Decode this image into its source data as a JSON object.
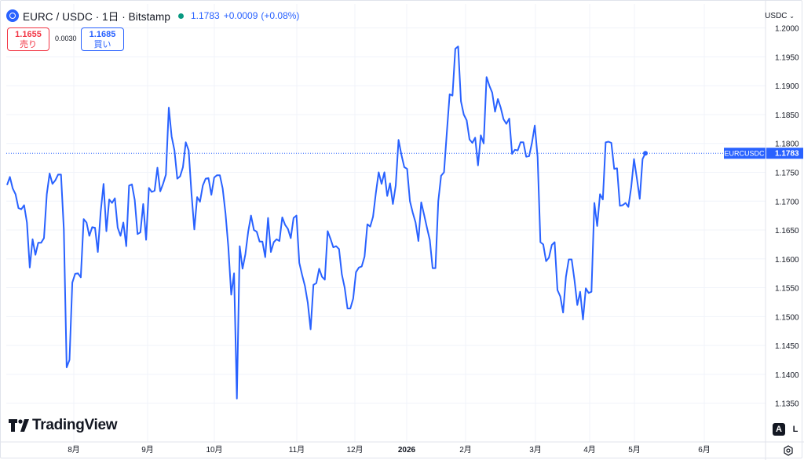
{
  "header": {
    "title": "EURC / USDC · 1日 · Bitstamp",
    "price": "1.1783",
    "change": "+0.0009",
    "change_pct": "(+0.08%)"
  },
  "trade": {
    "sell_price": "1.1655",
    "sell_label": "売り",
    "spread": "0.0030",
    "buy_price": "1.1685",
    "buy_label": "買い"
  },
  "axis_currency": "USDC",
  "branding": "TradingView",
  "controls": {
    "auto": "A",
    "log": "L"
  },
  "colors": {
    "line": "#2962ff",
    "sell": "#f23645",
    "buy": "#2962ff",
    "status_dot": "#089981"
  },
  "chart_data": {
    "type": "line",
    "series": [
      {
        "name": "EURCUSDC",
        "values": [
          1.1728,
          1.1742,
          1.1722,
          1.1712,
          1.1688,
          1.1686,
          1.1693,
          1.1663,
          1.1585,
          1.1634,
          1.1607,
          1.1628,
          1.1628,
          1.1636,
          1.1712,
          1.1748,
          1.173,
          1.1736,
          1.1746,
          1.1746,
          1.1651,
          1.1412,
          1.1425,
          1.1559,
          1.1574,
          1.1575,
          1.1568,
          1.1669,
          1.1663,
          1.164,
          1.1655,
          1.1654,
          1.1612,
          1.1681,
          1.173,
          1.1648,
          1.1703,
          1.1697,
          1.1705,
          1.1654,
          1.164,
          1.1663,
          1.1622,
          1.1727,
          1.1729,
          1.1702,
          1.1643,
          1.1646,
          1.1695,
          1.1633,
          1.1723,
          1.1716,
          1.1718,
          1.1758,
          1.1717,
          1.173,
          1.1746,
          1.1862,
          1.1812,
          1.1788,
          1.1739,
          1.1743,
          1.1759,
          1.1802,
          1.1788,
          1.1713,
          1.1651,
          1.1707,
          1.1699,
          1.1727,
          1.1739,
          1.174,
          1.1711,
          1.1741,
          1.1745,
          1.1745,
          1.1722,
          1.1679,
          1.1621,
          1.1538,
          1.1575,
          1.1358,
          1.1622,
          1.1583,
          1.1608,
          1.1647,
          1.1675,
          1.165,
          1.1647,
          1.163,
          1.163,
          1.1603,
          1.1671,
          1.1612,
          1.1629,
          1.1634,
          1.1631,
          1.1672,
          1.1659,
          1.1652,
          1.1636,
          1.1671,
          1.1675,
          1.1593,
          1.1572,
          1.1553,
          1.1524,
          1.1478,
          1.1555,
          1.1558,
          1.1583,
          1.1569,
          1.1564,
          1.1648,
          1.1635,
          1.162,
          1.1622,
          1.1617,
          1.1573,
          1.155,
          1.1514,
          1.1514,
          1.1531,
          1.1577,
          1.1585,
          1.1587,
          1.1604,
          1.166,
          1.1656,
          1.1673,
          1.1714,
          1.175,
          1.173,
          1.175,
          1.1709,
          1.1731,
          1.1695,
          1.1727,
          1.1806,
          1.178,
          1.1759,
          1.1756,
          1.17,
          1.168,
          1.1663,
          1.1631,
          1.1698,
          1.1676,
          1.1654,
          1.1633,
          1.1584,
          1.1584,
          1.17,
          1.1744,
          1.175,
          1.1819,
          1.1885,
          1.1883,
          1.1964,
          1.1968,
          1.1873,
          1.185,
          1.184,
          1.1807,
          1.1801,
          1.181,
          1.1762,
          1.1814,
          1.18,
          1.1915,
          1.19,
          1.1888,
          1.1855,
          1.1877,
          1.1862,
          1.1842,
          1.1834,
          1.1843,
          1.1782,
          1.1789,
          1.1788,
          1.1802,
          1.1802,
          1.1777,
          1.1778,
          1.1801,
          1.1831,
          1.1777,
          1.1629,
          1.1625,
          1.1596,
          1.1602,
          1.1624,
          1.1629,
          1.1546,
          1.1535,
          1.1507,
          1.1569,
          1.1599,
          1.1599,
          1.1563,
          1.152,
          1.1543,
          1.1495,
          1.1549,
          1.1541,
          1.1543,
          1.1697,
          1.1657,
          1.1712,
          1.1703,
          1.1802,
          1.1803,
          1.1801,
          1.1756,
          1.1757,
          1.1692,
          1.1693,
          1.1697,
          1.169,
          1.1724,
          1.1773,
          1.1739,
          1.1704,
          1.1773,
          1.1783
        ]
      }
    ],
    "x_labels": [
      "8月",
      "9月",
      "10月",
      "11月",
      "12月",
      "2026",
      "2月",
      "3月",
      "4月",
      "5月",
      "6月"
    ],
    "y_ticks": [
      1.2,
      1.195,
      1.19,
      1.185,
      1.18,
      1.175,
      1.17,
      1.165,
      1.16,
      1.155,
      1.15,
      1.145,
      1.14,
      1.135
    ],
    "y_tick_labels": [
      "1.2000",
      "1.1950",
      "1.1900",
      "1.1850",
      "1.1800",
      "1.1750",
      "1.1700",
      "1.1650",
      "1.1600",
      "1.1550",
      "1.1500",
      "1.1450",
      "1.1400",
      "1.1350"
    ],
    "ylim": [
      1.1325,
      1.2005
    ],
    "last_value": 1.1783,
    "last_label": "EURCUSDC",
    "last_value_label": "1.1783",
    "grid": true
  }
}
